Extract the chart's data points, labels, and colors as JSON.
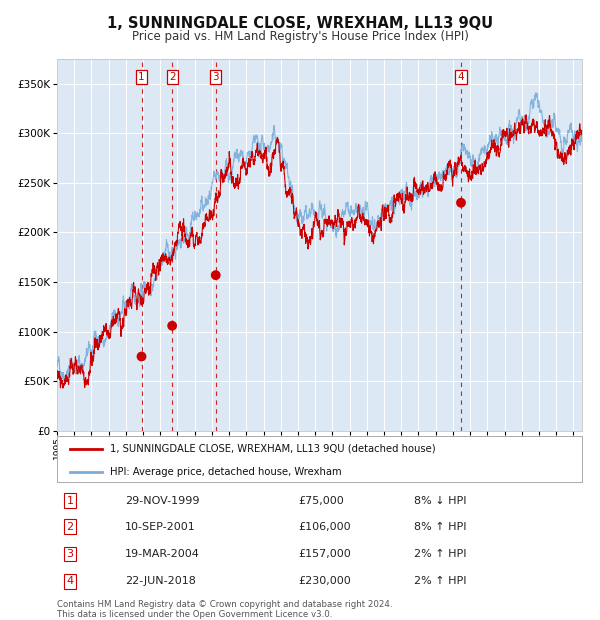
{
  "title": "1, SUNNINGDALE CLOSE, WREXHAM, LL13 9QU",
  "subtitle": "Price paid vs. HM Land Registry's House Price Index (HPI)",
  "fig_bg_color": "#ffffff",
  "plot_bg_color": "#dce9f5",
  "grid_color": "#ffffff",
  "yticks": [
    0,
    50000,
    100000,
    150000,
    200000,
    250000,
    300000,
    350000
  ],
  "ylim": [
    0,
    375000
  ],
  "xlim_start": 1995.0,
  "xlim_end": 2025.5,
  "sale_dates_num": [
    1999.91,
    2001.69,
    2004.22,
    2018.47
  ],
  "sale_prices": [
    75000,
    106000,
    157000,
    230000
  ],
  "sale_labels": [
    "1",
    "2",
    "3",
    "4"
  ],
  "vline_color": "#cc0000",
  "sale_marker_color": "#cc0000",
  "red_line_color": "#cc0000",
  "blue_line_color": "#7aaddb",
  "legend_entries": [
    "1, SUNNINGDALE CLOSE, WREXHAM, LL13 9QU (detached house)",
    "HPI: Average price, detached house, Wrexham"
  ],
  "table_rows": [
    [
      "1",
      "29-NOV-1999",
      "£75,000",
      "8% ↓ HPI"
    ],
    [
      "2",
      "10-SEP-2001",
      "£106,000",
      "8% ↑ HPI"
    ],
    [
      "3",
      "19-MAR-2004",
      "£157,000",
      "2% ↑ HPI"
    ],
    [
      "4",
      "22-JUN-2018",
      "£230,000",
      "2% ↑ HPI"
    ]
  ],
  "footer": "Contains HM Land Registry data © Crown copyright and database right 2024.\nThis data is licensed under the Open Government Licence v3.0.",
  "xlabel_years": [
    1995,
    1996,
    1997,
    1998,
    1999,
    2000,
    2001,
    2002,
    2003,
    2004,
    2005,
    2006,
    2007,
    2008,
    2009,
    2010,
    2011,
    2012,
    2013,
    2014,
    2015,
    2016,
    2017,
    2018,
    2019,
    2020,
    2021,
    2022,
    2023,
    2024,
    2025
  ]
}
